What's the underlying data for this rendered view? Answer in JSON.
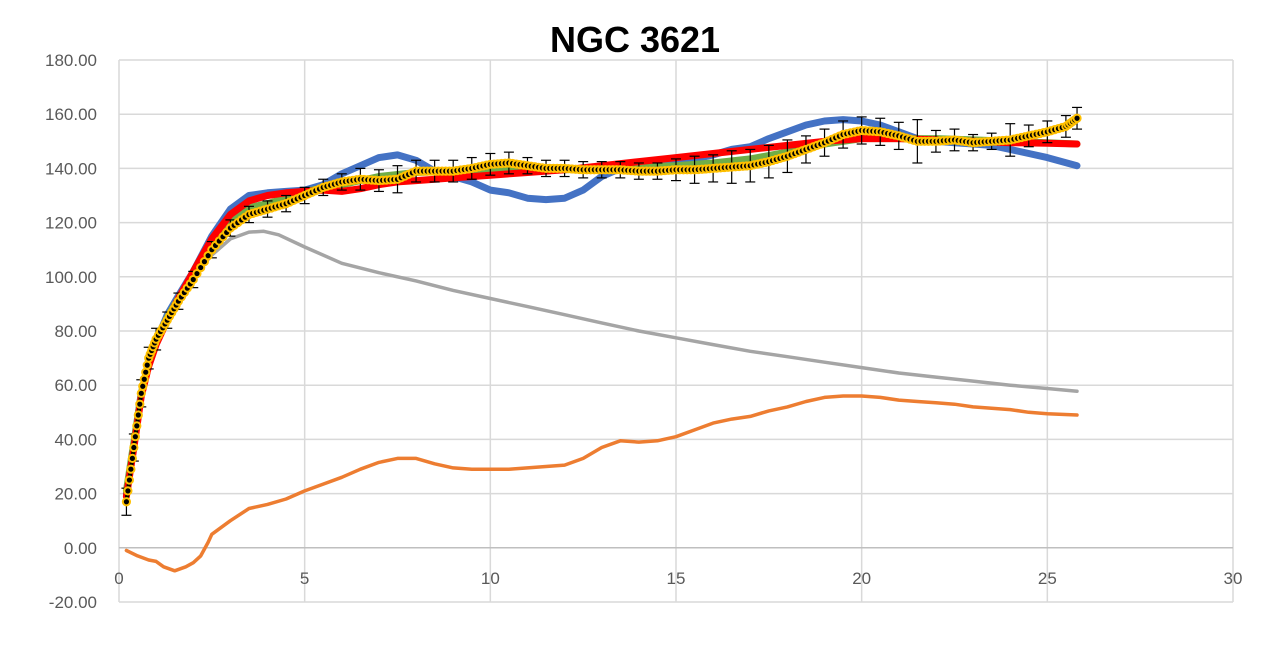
{
  "chart_data": {
    "type": "line",
    "title": "NGC 3621",
    "xlabel": "",
    "ylabel": "",
    "xlim": [
      0,
      30
    ],
    "ylim": [
      -20,
      180
    ],
    "x_ticks": [
      "0",
      "5",
      "10",
      "15",
      "20",
      "25",
      "30"
    ],
    "y_ticks": [
      "-20.00",
      "0.00",
      "20.00",
      "40.00",
      "60.00",
      "80.00",
      "100.00",
      "120.00",
      "140.00",
      "160.00",
      "180.00"
    ],
    "grid": true,
    "legend": "none",
    "series": [
      {
        "color": "#A5A5A5",
        "style": "line",
        "x": [
          0.2,
          0.4,
          0.6,
          0.8,
          1.0,
          1.3,
          1.6,
          2.0,
          2.5,
          3.0,
          3.5,
          3.9,
          4.3,
          5.0,
          6.0,
          7.0,
          8.0,
          9.0,
          10.0,
          11.0,
          12.0,
          13.0,
          14.0,
          15.0,
          16.0,
          17.0,
          18.0,
          19.0,
          20.0,
          21.0,
          22.0,
          23.0,
          24.0,
          25.0,
          25.8
        ],
        "values": [
          22,
          40,
          55,
          66,
          74,
          83,
          90,
          100,
          108,
          114,
          116.5,
          116.8,
          115.5,
          111,
          105,
          101.5,
          98.5,
          95,
          92,
          89,
          86,
          83,
          80,
          77.5,
          75,
          72.5,
          70.5,
          68.5,
          66.5,
          64.5,
          63,
          61.5,
          60,
          58.8,
          57.8
        ]
      },
      {
        "color": "#ED7D31",
        "style": "line",
        "x": [
          0.2,
          0.5,
          0.8,
          1.0,
          1.2,
          1.5,
          1.8,
          2.0,
          2.2,
          2.4,
          2.5,
          2.7,
          3.0,
          3.5,
          4.0,
          4.5,
          5.0,
          5.5,
          6.0,
          6.5,
          7.0,
          7.5,
          8.0,
          8.5,
          9.0,
          9.5,
          10.0,
          10.5,
          11.0,
          11.5,
          12.0,
          12.5,
          13.0,
          13.5,
          14.0,
          14.5,
          15.0,
          15.5,
          16.0,
          16.5,
          17.0,
          17.5,
          18.0,
          18.5,
          19.0,
          19.5,
          20.0,
          20.5,
          21.0,
          21.5,
          22.0,
          22.5,
          23.0,
          23.5,
          24.0,
          24.5,
          25.0,
          25.8
        ],
        "values": [
          -1,
          -3,
          -4.5,
          -5,
          -7,
          -8.5,
          -7,
          -5.5,
          -3,
          2,
          5,
          7,
          10,
          14.5,
          16,
          18,
          21,
          23.5,
          26,
          29,
          31.5,
          33,
          33,
          31,
          29.5,
          29,
          29,
          29,
          29.5,
          30,
          30.5,
          33,
          37,
          39.5,
          39,
          39.5,
          41,
          43.5,
          46,
          47.5,
          48.5,
          50.5,
          52,
          54,
          55.5,
          56,
          56,
          55.5,
          54.5,
          54,
          53.5,
          53,
          52,
          51.5,
          51,
          50,
          49.5,
          49
        ]
      },
      {
        "color": "#4472C4",
        "style": "thick-line",
        "x": [
          0.2,
          0.4,
          0.6,
          0.8,
          1.0,
          1.3,
          1.6,
          2.0,
          2.5,
          3.0,
          3.5,
          4.0,
          4.5,
          5.0,
          5.5,
          6.0,
          6.5,
          7.0,
          7.5,
          8.0,
          8.5,
          9.0,
          9.5,
          10.0,
          10.5,
          11.0,
          11.5,
          12.0,
          12.5,
          13.0,
          13.5,
          14.0,
          14.5,
          15.0,
          15.5,
          16.0,
          16.5,
          17.0,
          17.5,
          18.0,
          18.5,
          19.0,
          19.5,
          20.0,
          20.5,
          21.0,
          21.5,
          22.0,
          22.5,
          23.0,
          23.5,
          24.0,
          24.5,
          25.0,
          25.8
        ],
        "values": [
          20,
          38,
          57,
          68,
          76,
          86,
          93,
          102,
          115,
          125,
          130,
          131,
          131.5,
          132,
          134,
          138,
          141,
          144,
          145,
          143,
          139,
          137,
          135,
          132,
          131,
          129,
          128.5,
          129,
          132,
          137,
          140,
          141,
          141,
          142,
          143.5,
          145,
          147,
          148,
          151,
          153.5,
          156,
          157.5,
          158,
          157.5,
          156,
          153.5,
          151,
          150,
          149.5,
          149,
          148.5,
          147,
          145.5,
          144,
          141
        ]
      },
      {
        "color": "#70AD47",
        "style": "thick-line",
        "x": [
          0.2,
          0.4,
          0.6,
          0.8,
          1.0,
          1.3,
          1.6,
          2.0,
          2.5,
          3.0,
          3.5,
          4.0,
          4.5,
          5.0,
          6.0,
          7.0,
          8.0,
          9.0,
          10.0,
          11.0,
          12.0,
          13.0,
          14.0,
          15.0,
          16.0,
          17.0,
          18.0,
          19.0,
          20.0,
          21.0,
          22.0,
          23.0,
          24.0,
          25.0,
          25.8
        ],
        "values": [
          21,
          39,
          57,
          68,
          76,
          85,
          92,
          101,
          112,
          121,
          125.5,
          127,
          129,
          131.5,
          134,
          137,
          138.5,
          139,
          139.5,
          139.5,
          139.5,
          140,
          140.5,
          141,
          142,
          143.5,
          146,
          149,
          151,
          151,
          151,
          150.5,
          150,
          149.5,
          149
        ]
      },
      {
        "color": "#FF0000",
        "style": "thick-line",
        "x": [
          0.2,
          0.4,
          0.6,
          0.8,
          1.0,
          1.3,
          1.6,
          2.0,
          2.5,
          3.0,
          3.5,
          4.0,
          4.5,
          5.0,
          5.5,
          6.0,
          6.5,
          7.0,
          7.5,
          8.0,
          9.0,
          10.0,
          11.0,
          12.0,
          13.0,
          14.0,
          15.0,
          16.0,
          17.0,
          18.0,
          19.0,
          20.0,
          21.0,
          22.0,
          23.0,
          24.0,
          25.0,
          25.8
        ],
        "values": [
          19,
          37,
          56,
          67,
          75,
          84,
          92,
          102,
          114,
          123,
          128,
          130,
          131,
          131.5,
          132,
          131.5,
          132.5,
          134,
          135,
          135.5,
          136.5,
          137.5,
          138.5,
          139.5,
          141,
          142.5,
          144,
          145.5,
          147,
          148.5,
          150,
          151,
          151,
          150.5,
          150,
          149.5,
          149.3,
          149
        ]
      },
      {
        "color": "#000000",
        "marker_color": "#FFC000",
        "style": "markers-with-error",
        "x": [
          0.2,
          0.4,
          0.6,
          0.8,
          1.0,
          1.3,
          1.6,
          2.0,
          2.5,
          3.0,
          3.5,
          4.0,
          4.5,
          5.0,
          5.5,
          6.0,
          6.5,
          7.0,
          7.5,
          8.0,
          8.5,
          9.0,
          9.5,
          10.0,
          10.5,
          11.0,
          11.5,
          12.0,
          12.5,
          13.0,
          13.5,
          14.0,
          14.5,
          15.0,
          15.5,
          16.0,
          16.5,
          17.0,
          17.5,
          18.0,
          18.5,
          19.0,
          19.5,
          20.0,
          20.5,
          21.0,
          21.5,
          22.0,
          22.5,
          23.0,
          23.5,
          24.0,
          24.5,
          25.0,
          25.5,
          25.8
        ],
        "values": [
          17,
          37,
          57,
          70,
          77,
          84,
          91,
          99,
          110,
          118,
          123,
          125,
          127,
          130,
          133,
          135,
          136,
          135.5,
          136,
          139,
          139,
          139,
          140,
          141.5,
          142,
          141,
          140,
          140,
          139.5,
          139.5,
          139.5,
          139,
          139,
          139.5,
          139.5,
          140,
          140.5,
          141,
          142.5,
          144.5,
          147,
          149.5,
          152.5,
          154,
          153.5,
          152,
          150,
          150,
          150.5,
          149.5,
          150,
          150.5,
          152,
          153.5,
          155.5,
          158.5
        ],
        "error": [
          5,
          5,
          5,
          4,
          4,
          3,
          3,
          3,
          3,
          3,
          3,
          3,
          3,
          3,
          3,
          3,
          4,
          4,
          5,
          4,
          4,
          4,
          4,
          4,
          4,
          3,
          3,
          3,
          3,
          3,
          3,
          3,
          3,
          4,
          5,
          5,
          6,
          6,
          6,
          6,
          5,
          5,
          5,
          5,
          5,
          5,
          8,
          4,
          4,
          3,
          3,
          6,
          4,
          4,
          4,
          4
        ]
      }
    ]
  }
}
